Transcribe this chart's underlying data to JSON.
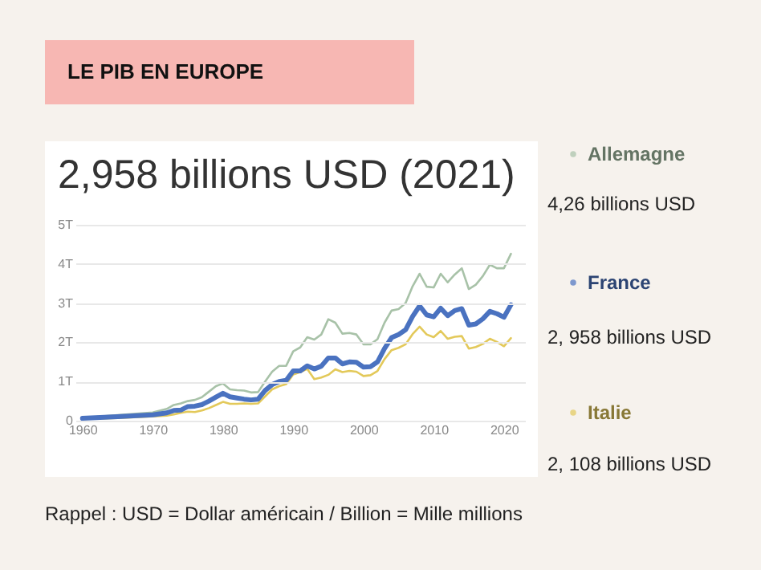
{
  "chart_data": {
    "type": "line",
    "title": "LE PIB EN EUROPE",
    "subtitle": "2,958 billions USD (2021)",
    "x": [
      1960,
      1965,
      1970,
      1972,
      1973,
      1974,
      1975,
      1976,
      1977,
      1978,
      1979,
      1980,
      1981,
      1982,
      1983,
      1984,
      1985,
      1986,
      1987,
      1988,
      1989,
      1990,
      1991,
      1992,
      1993,
      1994,
      1995,
      1996,
      1997,
      1998,
      1999,
      2000,
      2001,
      2002,
      2003,
      2004,
      2005,
      2006,
      2007,
      2008,
      2009,
      2010,
      2011,
      2012,
      2013,
      2014,
      2015,
      2016,
      2017,
      2018,
      2019,
      2020,
      2021
    ],
    "series": [
      {
        "name": "Allemagne",
        "color": "#a8c2a8",
        "values": [
          0.07,
          0.14,
          0.21,
          0.3,
          0.4,
          0.44,
          0.5,
          0.53,
          0.6,
          0.74,
          0.88,
          0.95,
          0.8,
          0.78,
          0.77,
          0.72,
          0.73,
          1.0,
          1.25,
          1.4,
          1.4,
          1.77,
          1.87,
          2.13,
          2.07,
          2.2,
          2.59,
          2.5,
          2.22,
          2.24,
          2.2,
          1.95,
          1.95,
          2.08,
          2.5,
          2.81,
          2.85,
          3.0,
          3.43,
          3.75,
          3.42,
          3.4,
          3.75,
          3.53,
          3.73,
          3.89,
          3.36,
          3.47,
          3.69,
          3.98,
          3.89,
          3.89,
          4.26
        ]
      },
      {
        "name": "France",
        "color": "#4a72c0",
        "values": [
          0.06,
          0.1,
          0.15,
          0.2,
          0.26,
          0.27,
          0.36,
          0.37,
          0.41,
          0.5,
          0.6,
          0.7,
          0.61,
          0.58,
          0.55,
          0.53,
          0.55,
          0.77,
          0.92,
          1.0,
          1.03,
          1.27,
          1.27,
          1.4,
          1.32,
          1.39,
          1.6,
          1.6,
          1.45,
          1.5,
          1.49,
          1.37,
          1.38,
          1.5,
          1.84,
          2.12,
          2.2,
          2.32,
          2.66,
          2.93,
          2.7,
          2.65,
          2.87,
          2.68,
          2.81,
          2.86,
          2.44,
          2.47,
          2.6,
          2.79,
          2.73,
          2.64,
          2.958
        ]
      },
      {
        "name": "Italie",
        "color": "#e3c95a",
        "values": [
          0.04,
          0.07,
          0.11,
          0.13,
          0.16,
          0.2,
          0.23,
          0.22,
          0.26,
          0.32,
          0.4,
          0.48,
          0.43,
          0.43,
          0.44,
          0.43,
          0.44,
          0.62,
          0.8,
          0.88,
          0.93,
          1.18,
          1.24,
          1.32,
          1.06,
          1.1,
          1.17,
          1.31,
          1.24,
          1.27,
          1.25,
          1.14,
          1.16,
          1.27,
          1.57,
          1.8,
          1.86,
          1.95,
          2.21,
          2.4,
          2.2,
          2.13,
          2.29,
          2.09,
          2.14,
          2.16,
          1.84,
          1.88,
          1.96,
          2.09,
          2.01,
          1.9,
          2.108
        ]
      }
    ],
    "xlim": [
      1959,
      2023
    ],
    "xticks": [
      1960,
      1970,
      1980,
      1990,
      2000,
      2010,
      2020
    ],
    "ylim": [
      0,
      5
    ],
    "yticks": [
      0,
      {
        "value": 1,
        "label": "1T"
      },
      {
        "value": 2,
        "label": "2T"
      },
      {
        "value": 3,
        "label": "3T"
      },
      {
        "value": 4,
        "label": "4T"
      },
      {
        "value": 5,
        "label": "5T"
      }
    ],
    "grid": "y",
    "legend": "right",
    "marker": "none",
    "line_style": "solid",
    "annotations": [
      "4,26 billions USD",
      "2, 958 billions USD",
      "2, 108 billions USD",
      "Rappel :  USD = Dollar américain / Billion = Mille millions"
    ]
  }
}
